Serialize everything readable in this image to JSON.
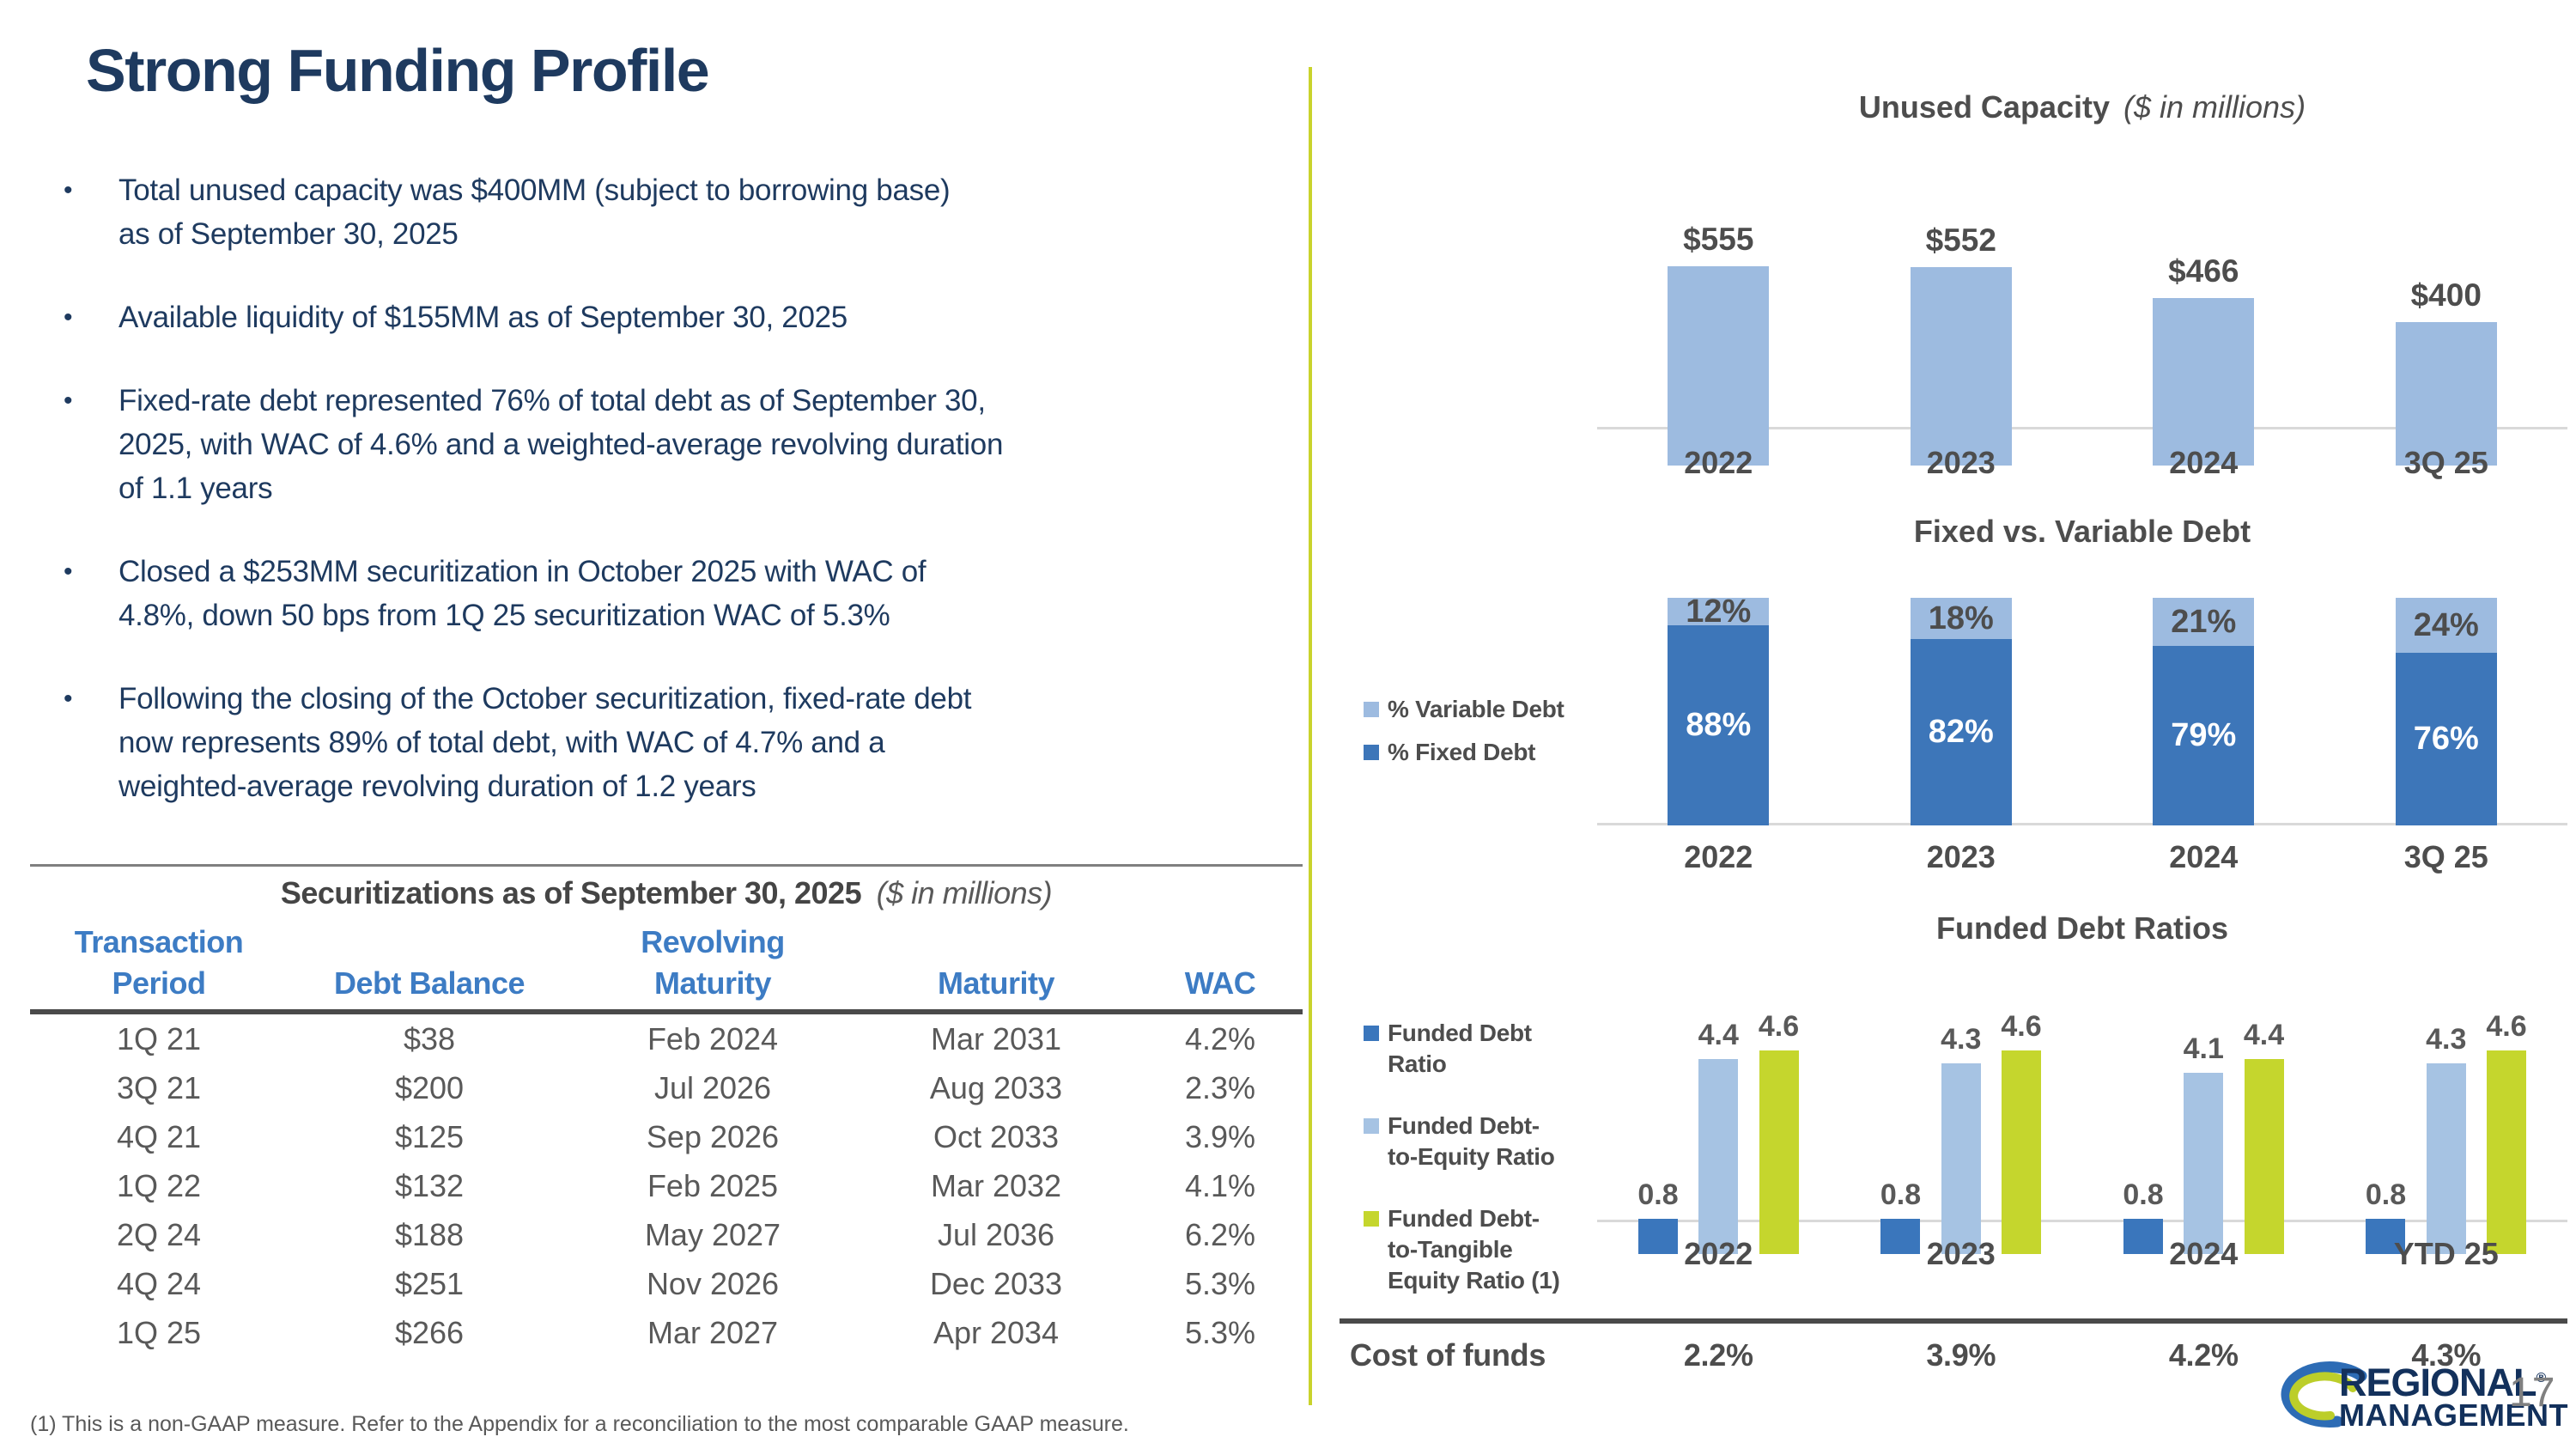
{
  "slide": {
    "title": "Strong Funding Profile",
    "page_number": "17",
    "footnote": "(1) This is a non-GAAP measure. Refer to the Appendix for a reconciliation to the most comparable GAAP measure.",
    "logo": {
      "line1": "REGIONAL",
      "reg_mark": "®",
      "line2": "MANAGEMENT"
    }
  },
  "bullets": [
    "Total unused capacity was $400MM (subject to borrowing base)\nas of September 30, 2025",
    "Available liquidity of $155MM as of September 30, 2025",
    "Fixed-rate debt represented 76% of total debt as of September 30,\n2025, with WAC of 4.6% and a weighted-average revolving duration\nof 1.1 years",
    "Closed a $253MM securitization in October 2025 with WAC of\n4.8%, down 50 bps from 1Q 25 securitization WAC of 5.3%",
    "Following the closing of the October securitization, fixed-rate debt\nnow represents 89% of total debt, with WAC of 4.7% and a\nweighted-average revolving duration of 1.2 years"
  ],
  "securitizations_table": {
    "title": "Securitizations as of September 30, 2025",
    "title_suffix": "($ in millions)",
    "headers": [
      {
        "line1": "Transaction",
        "line2": "Period"
      },
      {
        "line1": "",
        "line2": "Debt Balance"
      },
      {
        "line1": "Revolving",
        "line2": "Maturity"
      },
      {
        "line1": "",
        "line2": "Maturity"
      },
      {
        "line1": "",
        "line2": "WAC"
      }
    ],
    "rows": [
      [
        "1Q 21",
        "$38",
        "Feb 2024",
        "Mar 2031",
        "4.2%"
      ],
      [
        "3Q 21",
        "$200",
        "Jul 2026",
        "Aug 2033",
        "2.3%"
      ],
      [
        "4Q 21",
        "$125",
        "Sep 2026",
        "Oct 2033",
        "3.9%"
      ],
      [
        "1Q 22",
        "$132",
        "Feb 2025",
        "Mar 2032",
        "4.1%"
      ],
      [
        "2Q 24",
        "$188",
        "May 2027",
        "Jul 2036",
        "6.2%"
      ],
      [
        "4Q 24",
        "$251",
        "Nov 2026",
        "Dec 2033",
        "5.3%"
      ],
      [
        "1Q 25",
        "$266",
        "Mar 2027",
        "Apr 2034",
        "5.3%"
      ]
    ]
  },
  "chart_data": [
    {
      "type": "bar",
      "title": "Unused Capacity",
      "title_suffix": "($ in millions)",
      "categories": [
        "2022",
        "2023",
        "2024",
        "3Q 25"
      ],
      "values": [
        555,
        552,
        466,
        400
      ],
      "labels": [
        "$555",
        "$552",
        "$466",
        "$400"
      ],
      "ylim": [
        0,
        600
      ],
      "bar_color": "#9DBBE0",
      "grid": false,
      "legend_position": "none"
    },
    {
      "type": "stacked-bar",
      "title": "Fixed vs. Variable Debt",
      "categories": [
        "2022",
        "2023",
        "2024",
        "3Q 25"
      ],
      "series": [
        {
          "name": "% Variable Debt",
          "color": "#9DBBE0",
          "values": [
            12,
            18,
            21,
            24
          ],
          "labels": [
            "12%",
            "18%",
            "21%",
            "24%"
          ]
        },
        {
          "name": "% Fixed Debt",
          "color": "#3D76B9",
          "values": [
            88,
            82,
            79,
            76
          ],
          "labels": [
            "88%",
            "82%",
            "79%",
            "76%"
          ]
        }
      ],
      "ylim": [
        0,
        100
      ],
      "grid": false,
      "legend_position": "left"
    },
    {
      "type": "grouped-bar",
      "title": "Funded Debt Ratios",
      "categories": [
        "2022",
        "2023",
        "2024",
        "YTD 25"
      ],
      "series": [
        {
          "name": "Funded Debt Ratio",
          "color": "#3A76BC",
          "values": [
            0.8,
            0.8,
            0.8,
            0.8
          ],
          "labels": [
            "0.8",
            "0.8",
            "0.8",
            "0.8"
          ]
        },
        {
          "name": "Funded Debt-to-Equity Ratio",
          "color": "#A6C3E3",
          "values": [
            4.4,
            4.3,
            4.1,
            4.3
          ],
          "labels": [
            "4.4",
            "4.3",
            "4.1",
            "4.3"
          ]
        },
        {
          "name": "Funded Debt-to-Tangible Equity Ratio (1)",
          "color": "#C5D62D",
          "values": [
            4.6,
            4.6,
            4.4,
            4.6
          ],
          "labels": [
            "4.6",
            "4.6",
            "4.4",
            "4.6"
          ]
        }
      ],
      "legend_labels": [
        "Funded Debt\nRatio",
        "Funded Debt-\nto-Equity Ratio",
        "Funded Debt-\nto-Tangible\nEquity Ratio (1)"
      ],
      "ylim": [
        0,
        5
      ],
      "grid": false,
      "legend_position": "left"
    }
  ],
  "cost_of_funds": {
    "label": "Cost of funds",
    "values": [
      "2.2%",
      "3.9%",
      "4.2%",
      "4.3%"
    ]
  }
}
